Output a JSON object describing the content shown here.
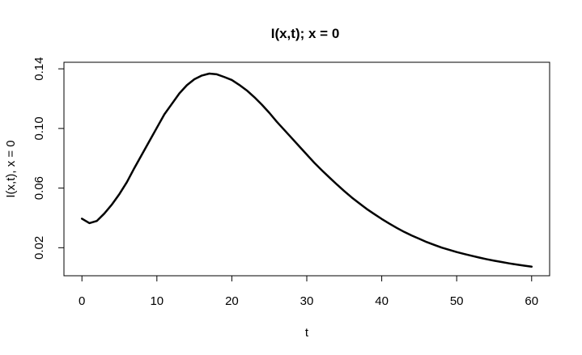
{
  "chart_data": {
    "type": "line",
    "title": "I(x,t); x = 0",
    "xlabel": "t",
    "ylabel": "I(x,t), x = 0",
    "xlim": [
      -2.4,
      62.4
    ],
    "ylim": [
      0.0012,
      0.1444
    ],
    "xticks": [
      0,
      10,
      20,
      30,
      40,
      50,
      60
    ],
    "xtick_labels": [
      "0",
      "10",
      "20",
      "30",
      "40",
      "50",
      "60"
    ],
    "yticks": [
      0.02,
      0.06,
      0.1,
      0.14
    ],
    "ytick_labels": [
      "0.02",
      "0.06",
      "0.10",
      "0.14"
    ],
    "grid": false,
    "legend": "none",
    "line_color": "#000000",
    "series": [
      {
        "x": [
          0,
          1,
          2,
          3,
          4,
          5,
          6,
          7,
          8,
          9,
          10,
          11,
          12,
          13,
          14,
          15,
          16,
          17,
          18,
          19,
          20,
          21,
          22,
          23,
          24,
          25,
          26,
          27,
          28,
          29,
          30,
          31,
          32,
          33,
          34,
          35,
          36,
          37,
          38,
          39,
          40,
          41,
          42,
          43,
          44,
          45,
          46,
          47,
          48,
          49,
          50,
          51,
          52,
          53,
          54,
          55,
          56,
          57,
          58,
          59,
          60
        ],
        "y": [
          0.0395,
          0.0365,
          0.038,
          0.043,
          0.049,
          0.056,
          0.064,
          0.0735,
          0.0825,
          0.0915,
          0.1005,
          0.1095,
          0.1165,
          0.1235,
          0.129,
          0.133,
          0.1355,
          0.1368,
          0.1363,
          0.1345,
          0.1325,
          0.1292,
          0.1255,
          0.121,
          0.116,
          0.1105,
          0.1045,
          0.099,
          0.0935,
          0.088,
          0.0825,
          0.077,
          0.072,
          0.0672,
          0.0625,
          0.058,
          0.0537,
          0.0498,
          0.046,
          0.0426,
          0.0393,
          0.0362,
          0.0333,
          0.0306,
          0.0282,
          0.026,
          0.0238,
          0.0219,
          0.0201,
          0.0186,
          0.0171,
          0.0158,
          0.0146,
          0.0134,
          0.0123,
          0.0113,
          0.0104,
          0.0095,
          0.0087,
          0.008,
          0.0073
        ]
      }
    ]
  }
}
